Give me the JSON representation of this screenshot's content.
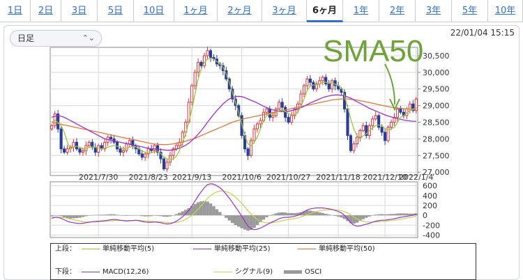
{
  "tabs": [
    {
      "label": "1日",
      "active": false
    },
    {
      "label": "2日",
      "active": false
    },
    {
      "label": "3日",
      "active": false
    },
    {
      "label": "5日",
      "active": false
    },
    {
      "label": "10日",
      "active": false
    },
    {
      "label": "1ヶ月",
      "active": false
    },
    {
      "label": "2ヶ月",
      "active": false
    },
    {
      "label": "3ヶ月",
      "active": false
    },
    {
      "label": "6ヶ月",
      "active": true
    },
    {
      "label": "1年",
      "active": false
    },
    {
      "label": "2年",
      "active": false
    },
    {
      "label": "3年",
      "active": false
    },
    {
      "label": "5年",
      "active": false
    },
    {
      "label": "10年",
      "active": false
    }
  ],
  "interval_select": {
    "value": "日足"
  },
  "timestamp": "22/01/04 15:15",
  "annotation": {
    "text": "SMA50",
    "color": "#6ea33a"
  },
  "colors": {
    "up": "#d9363e",
    "down": "#2a3d9b",
    "sma5": "#9bc53d",
    "sma25": "#9b30c9",
    "sma50": "#e0743a",
    "macd": "#9b30c9",
    "signal": "#c6d64a",
    "osci": "#9a9a9a",
    "grid": "#d8d8d8",
    "axis": "#888888"
  },
  "legend": {
    "upper_label": "上段：",
    "lower_label": "下段：",
    "upper_items": [
      "単純移動平均(5)",
      "単純移動平均(25)",
      "単純移動平均(50)"
    ],
    "lower_items": [
      "MACD(12,26)",
      "シグナル(9)",
      "OSCI"
    ]
  },
  "chart_data": [
    {
      "type": "candlestick",
      "title": "",
      "x_tick_labels": [
        "2021/7/30",
        "2021/8/23",
        "2021/9/13",
        "2021/10/6",
        "2021/10/27",
        "2021/11/18",
        "2021/12/10",
        "2022/1/4"
      ],
      "y_tick_labels": [
        "27,000",
        "27,500",
        "28,000",
        "28,500",
        "29,000",
        "29,500",
        "30,000",
        "30,500"
      ],
      "ylim": [
        26900,
        30750
      ],
      "grid": true,
      "series_names": [
        "単純移動平均(5)",
        "単純移動平均(25)",
        "単純移動平均(50)"
      ],
      "close": [
        28400,
        28750,
        28300,
        27700,
        27600,
        27700,
        27750,
        27900,
        27700,
        27600,
        27650,
        27800,
        27900,
        27750,
        27600,
        27800,
        27700,
        27900,
        28050,
        28000,
        27900,
        27700,
        27600,
        27650,
        27850,
        27950,
        27800,
        27700,
        27550,
        27450,
        27550,
        27700,
        27650,
        27800,
        27600,
        27400,
        27100,
        27300,
        27500,
        27700,
        27800,
        27900,
        28200,
        28500,
        29100,
        29600,
        30000,
        30300,
        30200,
        30500,
        30650,
        30450,
        30400,
        30250,
        30200,
        30050,
        29800,
        29500,
        29200,
        29000,
        28700,
        28100,
        27700,
        27500,
        27950,
        28300,
        28450,
        28550,
        28800,
        28900,
        28650,
        28700,
        28900,
        29100,
        28950,
        28650,
        28500,
        28700,
        28900,
        29050,
        29350,
        29600,
        29800,
        29700,
        29500,
        29650,
        29750,
        29850,
        29650,
        29500,
        29750,
        29600,
        29500,
        29400,
        28900,
        28100,
        27650,
        27850,
        28050,
        28250,
        28400,
        28100,
        28400,
        28600,
        28700,
        28350,
        28200,
        27950,
        28350,
        28500,
        28650,
        28900,
        28800,
        28700,
        28900,
        29050,
        28850,
        29200
      ],
      "sma5": [
        28500,
        28550,
        28500,
        28400,
        28200,
        27900,
        27700,
        27750,
        27780,
        27750,
        27700,
        27720,
        27740,
        27760,
        27750,
        27720,
        27700,
        27720,
        27750,
        27780,
        27800,
        27780,
        27750,
        27700,
        27720,
        27750,
        27780,
        27760,
        27700,
        27640,
        27600,
        27580,
        27580,
        27620,
        27640,
        27560,
        27460,
        27400,
        27380,
        27400,
        27480,
        27650,
        27900,
        28150,
        28500,
        28900,
        29350,
        29800,
        30100,
        30300,
        30400,
        30420,
        30400,
        30330,
        30250,
        30150,
        29950,
        29700,
        29400,
        29100,
        28800,
        28450,
        28100,
        27850,
        27800,
        27900,
        28050,
        28300,
        28550,
        28700,
        28750,
        28750,
        28780,
        28850,
        28880,
        28830,
        28760,
        28720,
        28740,
        28800,
        28980,
        29200,
        29450,
        29600,
        29620,
        29620,
        29650,
        29700,
        29700,
        29680,
        29680,
        29640,
        29600,
        29540,
        29300,
        28950,
        28600,
        28300,
        28100,
        28000,
        28100,
        28150,
        28250,
        28330,
        28400,
        28420,
        28400,
        28300,
        28280,
        28300,
        28350,
        28500,
        28650,
        28700,
        28780,
        28850,
        28880,
        28950
      ],
      "sma25": [
        28650,
        28680,
        28700,
        28680,
        28650,
        28600,
        28550,
        28500,
        28450,
        28400,
        28350,
        28300,
        28250,
        28200,
        28150,
        28100,
        28050,
        28000,
        27980,
        27960,
        27940,
        27920,
        27900,
        27880,
        27860,
        27840,
        27820,
        27800,
        27780,
        27760,
        27740,
        27720,
        27700,
        27700,
        27690,
        27680,
        27670,
        27660,
        27660,
        27670,
        27690,
        27720,
        27760,
        27810,
        27870,
        27950,
        28040,
        28140,
        28250,
        28370,
        28500,
        28620,
        28740,
        28850,
        28950,
        29050,
        29130,
        29200,
        29240,
        29270,
        29280,
        29270,
        29240,
        29200,
        29160,
        29120,
        29080,
        29030,
        28980,
        28940,
        28900,
        28870,
        28850,
        28830,
        28820,
        28820,
        28830,
        28850,
        28870,
        28900,
        28940,
        28980,
        29030,
        29080,
        29120,
        29160,
        29200,
        29240,
        29270,
        29290,
        29310,
        29320,
        29320,
        29310,
        29290,
        29260,
        29220,
        29170,
        29120,
        29070,
        29020,
        28970,
        28920,
        28880,
        28840,
        28800,
        28760,
        28720,
        28690,
        28660,
        28630,
        28610,
        28590,
        28570,
        28550,
        28540,
        28530,
        28530
      ],
      "sma50": [
        28500,
        28480,
        28460,
        28440,
        28420,
        28400,
        28380,
        28360,
        28340,
        28320,
        28300,
        28280,
        28260,
        28240,
        28220,
        28200,
        28180,
        28160,
        28140,
        28120,
        28100,
        28080,
        28060,
        28040,
        28020,
        28000,
        27980,
        27960,
        27940,
        27920,
        27900,
        27880,
        27860,
        27850,
        27840,
        27830,
        27830,
        27830,
        27840,
        27850,
        27870,
        27890,
        27910,
        27930,
        27960,
        27990,
        28020,
        28060,
        28100,
        28140,
        28180,
        28220,
        28260,
        28300,
        28340,
        28380,
        28420,
        28460,
        28500,
        28530,
        28560,
        28590,
        28610,
        28630,
        28650,
        28670,
        28690,
        28710,
        28730,
        28750,
        28770,
        28790,
        28810,
        28830,
        28850,
        28870,
        28890,
        28910,
        28930,
        28950,
        28970,
        28990,
        29010,
        29030,
        29050,
        29070,
        29090,
        29110,
        29130,
        29150,
        29170,
        29180,
        29190,
        29200,
        29200,
        29200,
        29190,
        29180,
        29170,
        29150,
        29130,
        29110,
        29090,
        29070,
        29050,
        29030,
        29010,
        28990,
        28970,
        28950,
        28940,
        28930,
        28920,
        28910,
        28900,
        28900,
        28900,
        28910
      ]
    },
    {
      "type": "line",
      "title": "",
      "y_tick_labels": [
        "600",
        "400",
        "200",
        "0",
        "-200",
        "-400"
      ],
      "ylim": [
        -450,
        680
      ],
      "grid": true,
      "series": [
        {
          "name": "MACD(12,26)",
          "values": [
            -60,
            -40,
            -40,
            -60,
            -90,
            -120,
            -140,
            -150,
            -160,
            -165,
            -160,
            -150,
            -140,
            -130,
            -125,
            -120,
            -115,
            -110,
            -100,
            -90,
            -85,
            -90,
            -100,
            -110,
            -115,
            -110,
            -105,
            -100,
            -110,
            -125,
            -135,
            -140,
            -140,
            -135,
            -140,
            -150,
            -165,
            -175,
            -170,
            -150,
            -120,
            -80,
            -30,
            30,
            100,
            190,
            290,
            390,
            480,
            560,
            620,
            640,
            630,
            600,
            560,
            500,
            430,
            350,
            260,
            170,
            80,
            -20,
            -120,
            -220,
            -270,
            -290,
            -280,
            -260,
            -230,
            -190,
            -160,
            -130,
            -100,
            -70,
            -50,
            -40,
            -40,
            -30,
            -20,
            0,
            30,
            70,
            110,
            130,
            140,
            150,
            150,
            150,
            140,
            130,
            120,
            100,
            80,
            50,
            0,
            -70,
            -150,
            -200,
            -220,
            -215,
            -195,
            -180,
            -160,
            -140,
            -120,
            -110,
            -100,
            -100,
            -90,
            -80,
            -70,
            -55,
            -40,
            -30,
            -20,
            -10,
            0,
            20
          ]
        },
        {
          "name": "シグナル(9)",
          "values": [
            -40,
            -40,
            -40,
            -42,
            -50,
            -62,
            -76,
            -90,
            -104,
            -116,
            -126,
            -132,
            -135,
            -135,
            -133,
            -130,
            -127,
            -123,
            -118,
            -112,
            -106,
            -102,
            -101,
            -102,
            -104,
            -105,
            -105,
            -104,
            -105,
            -109,
            -114,
            -119,
            -124,
            -127,
            -130,
            -133,
            -138,
            -144,
            -149,
            -149,
            -144,
            -131,
            -111,
            -82,
            -45,
            2,
            60,
            126,
            197,
            270,
            340,
            400,
            445,
            476,
            493,
            494,
            481,
            455,
            416,
            367,
            310,
            242,
            170,
            93,
            26,
            -36,
            -84,
            -119,
            -141,
            -150,
            -152,
            -148,
            -139,
            -126,
            -111,
            -97,
            -86,
            -75,
            -64,
            -51,
            -35,
            -14,
            11,
            35,
            56,
            75,
            90,
            102,
            110,
            114,
            115,
            112,
            106,
            95,
            76,
            47,
            8,
            -33,
            -70,
            -99,
            -118,
            -130,
            -136,
            -137,
            -134,
            -130,
            -124,
            -119,
            -113,
            -107,
            -99,
            -91,
            -80,
            -69,
            -57,
            -45,
            -33,
            -20
          ]
        },
        {
          "name": "OSCI",
          "type": "bar",
          "values": [
            -20,
            0,
            0,
            -18,
            -40,
            -58,
            -64,
            -60,
            -56,
            -49,
            -34,
            -18,
            -5,
            5,
            8,
            10,
            12,
            13,
            18,
            22,
            21,
            12,
            1,
            -8,
            -11,
            -5,
            0,
            4,
            -5,
            -16,
            -21,
            -21,
            -16,
            -8,
            -10,
            -17,
            -27,
            -31,
            -21,
            -1,
            24,
            51,
            81,
            112,
            145,
            188,
            230,
            264,
            283,
            290,
            280,
            240,
            185,
            124,
            67,
            6,
            -51,
            -105,
            -156,
            -197,
            -230,
            -262,
            -290,
            -313,
            -296,
            -254,
            -196,
            -141,
            -89,
            -40,
            -8,
            18,
            39,
            56,
            61,
            57,
            46,
            45,
            44,
            51,
            65,
            84,
            99,
            95,
            84,
            75,
            60,
            48,
            30,
            16,
            5,
            -12,
            -26,
            -45,
            -76,
            -117,
            -158,
            -167,
            -150,
            -116,
            -77,
            -50,
            -24,
            -3,
            14,
            20,
            24,
            19,
            23,
            27,
            29,
            36,
            40,
            39,
            37,
            35,
            33,
            40
          ]
        }
      ]
    }
  ]
}
